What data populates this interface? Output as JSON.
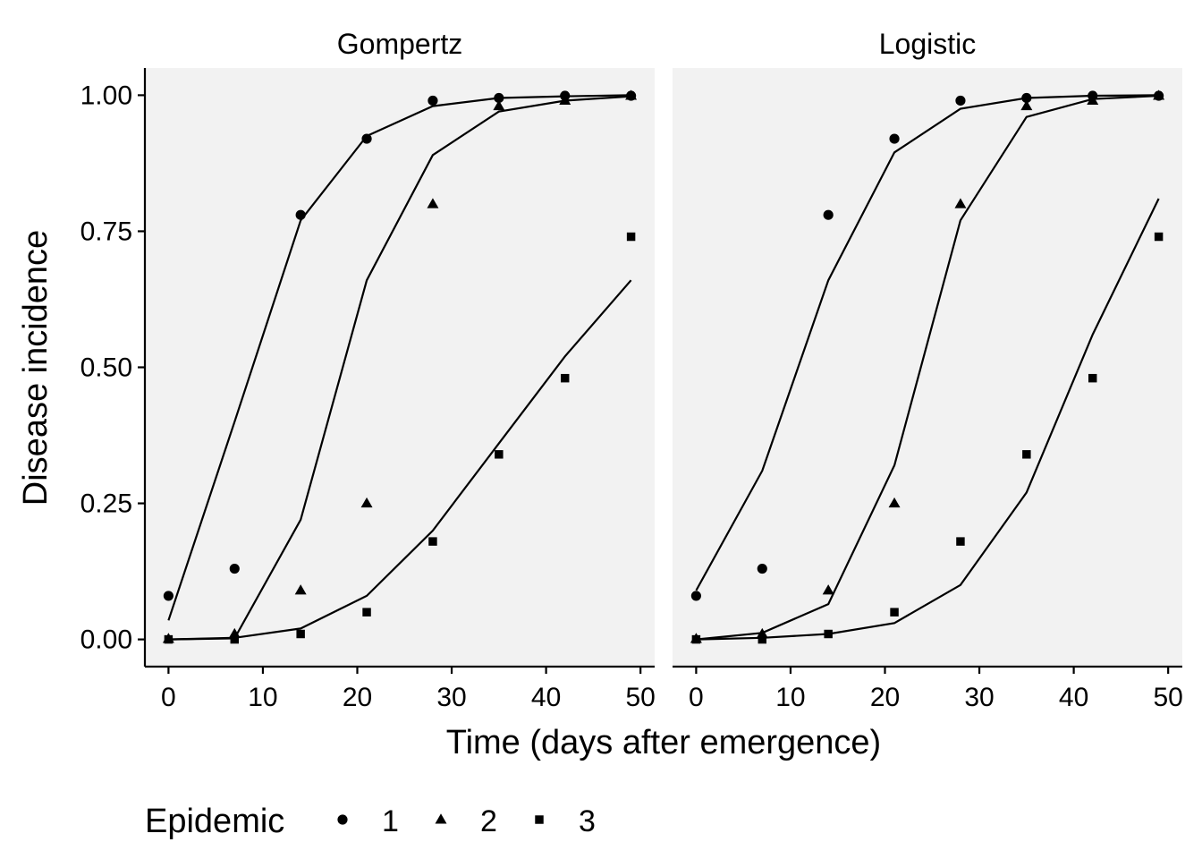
{
  "chart_data": {
    "type": "scatter",
    "xlabel": "Time (days after emergence)",
    "ylabel": "Disease incidence",
    "xlim": [
      -2.5,
      51.5
    ],
    "ylim": [
      -0.05,
      1.05
    ],
    "x_ticks": [
      "0",
      "10",
      "20",
      "30",
      "40",
      "50"
    ],
    "x_tick_values": [
      0,
      10,
      20,
      30,
      40,
      50
    ],
    "y_ticks": [
      "0.00",
      "0.25",
      "0.50",
      "0.75",
      "1.00"
    ],
    "y_tick_values": [
      0,
      0.25,
      0.5,
      0.75,
      1.0
    ],
    "grid": false,
    "panel_background": "#f2f2f2",
    "mark_color": "#000000",
    "legend": {
      "title": "Epidemic",
      "position": "bottom-left",
      "entries": [
        {
          "label": "1",
          "shape": "circle"
        },
        {
          "label": "2",
          "shape": "triangle"
        },
        {
          "label": "3",
          "shape": "square"
        }
      ]
    },
    "observed": {
      "x": [
        0,
        7,
        14,
        21,
        28,
        35,
        42,
        49
      ],
      "series": [
        {
          "name": "1",
          "shape": "circle",
          "values": [
            0.08,
            0.13,
            0.78,
            0.92,
            0.99,
            0.995,
            0.999,
            0.999
          ]
        },
        {
          "name": "2",
          "shape": "triangle",
          "values": [
            0.001,
            0.01,
            0.09,
            0.25,
            0.8,
            0.98,
            0.99,
            0.999
          ]
        },
        {
          "name": "3",
          "shape": "square",
          "values": [
            0.0,
            0.0,
            0.01,
            0.05,
            0.18,
            0.34,
            0.48,
            0.74
          ]
        }
      ]
    },
    "facets": [
      {
        "title": "Gompertz",
        "fitted": [
          {
            "series": "1",
            "values": [
              0.035,
              0.4,
              0.77,
              0.925,
              0.98,
              0.995,
              0.998,
              1.0
            ]
          },
          {
            "series": "2",
            "values": [
              0.0,
              0.002,
              0.22,
              0.66,
              0.89,
              0.97,
              0.99,
              0.998
            ]
          },
          {
            "series": "3",
            "values": [
              0.0,
              0.003,
              0.02,
              0.08,
              0.2,
              0.36,
              0.52,
              0.66
            ]
          }
        ]
      },
      {
        "title": "Logistic",
        "fitted": [
          {
            "series": "1",
            "values": [
              0.09,
              0.31,
              0.66,
              0.895,
              0.975,
              0.995,
              0.999,
              1.0
            ]
          },
          {
            "series": "2",
            "values": [
              0.0,
              0.012,
              0.065,
              0.32,
              0.77,
              0.96,
              0.993,
              0.999
            ]
          },
          {
            "series": "3",
            "values": [
              0.0,
              0.003,
              0.01,
              0.03,
              0.1,
              0.27,
              0.56,
              0.81
            ]
          }
        ]
      }
    ]
  }
}
